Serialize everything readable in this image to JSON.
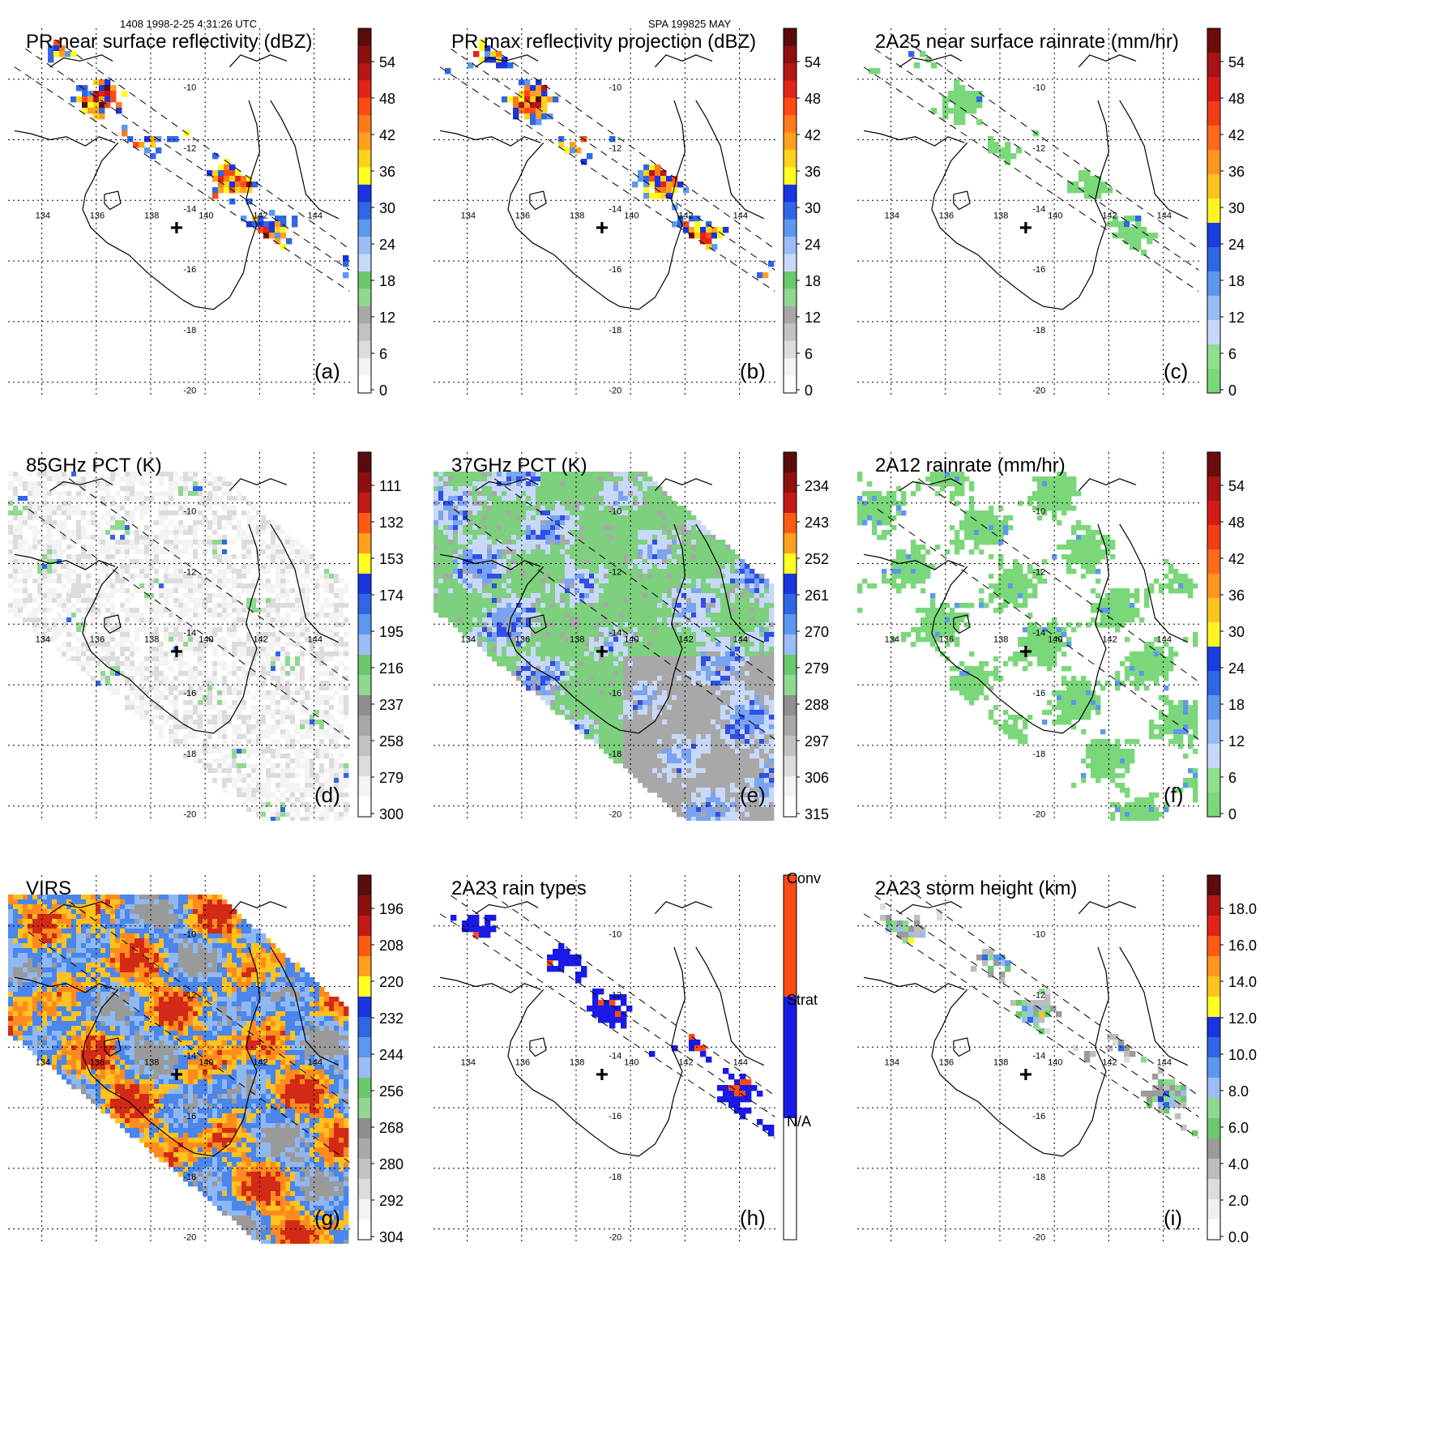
{
  "header": {
    "left": "1408 1998-2-25 4:31:26 UTC",
    "center": "SPA 199825 MAY"
  },
  "grid": {
    "lon_labels": [
      "134",
      "136",
      "138",
      "140",
      "142",
      "144"
    ],
    "lat_labels": [
      "-10",
      "-12",
      "-14",
      "-16",
      "-18",
      "-20"
    ]
  },
  "panels": [
    {
      "id": "a",
      "title": "PR near surface reflectivity (dBZ)",
      "label": "(a)",
      "kind": "swath",
      "colorbar": [
        "54",
        "48",
        "42",
        "36",
        "30",
        "24",
        "18",
        "12",
        "6",
        "0"
      ]
    },
    {
      "id": "b",
      "title": "PR max reflectivity projection (dBZ)",
      "label": "(b)",
      "kind": "swath",
      "colorbar": [
        "54",
        "48",
        "42",
        "36",
        "30",
        "24",
        "18",
        "12",
        "6",
        "0"
      ]
    },
    {
      "id": "c",
      "title": "2A25 near surface rainrate (mm/hr)",
      "label": "(c)",
      "kind": "swath",
      "colorbar": [
        "54",
        "48",
        "42",
        "36",
        "30",
        "24",
        "18",
        "12",
        "6",
        "0"
      ]
    },
    {
      "id": "d",
      "title": "85GHz PCT (K)",
      "label": "(d)",
      "kind": "wide",
      "colorbar": [
        "111",
        "132",
        "153",
        "174",
        "195",
        "216",
        "237",
        "258",
        "279",
        "300"
      ]
    },
    {
      "id": "e",
      "title": "37GHz PCT (K)",
      "label": "(e)",
      "kind": "wide",
      "colorbar": [
        "234",
        "243",
        "252",
        "261",
        "270",
        "279",
        "288",
        "297",
        "306",
        "315"
      ]
    },
    {
      "id": "f",
      "title": "2A12 rainrate (mm/hr)",
      "label": "(f)",
      "kind": "wide",
      "colorbar": [
        "54",
        "48",
        "42",
        "36",
        "30",
        "24",
        "18",
        "12",
        "6",
        "0"
      ]
    },
    {
      "id": "g",
      "title": "VIRS",
      "label": "(g)",
      "kind": "wide",
      "colorbar": [
        "196",
        "208",
        "220",
        "232",
        "244",
        "256",
        "268",
        "280",
        "292",
        "304"
      ]
    },
    {
      "id": "h",
      "title": "2A23 rain types",
      "label": "(h)",
      "kind": "swath",
      "colorbar": [
        "Conv",
        "Strat",
        "N/A"
      ]
    },
    {
      "id": "i",
      "title": "2A23 storm height (km)",
      "label": "(i)",
      "kind": "swath",
      "colorbar": [
        "18.0",
        "16.0",
        "14.0",
        "12.0",
        "10.0",
        "8.0",
        "6.0",
        "4.0",
        "2.0",
        "0.0"
      ]
    }
  ],
  "rain_type_legend": {
    "stratiform": "Strat",
    "convective": "Conv",
    "none": "N/A"
  }
}
